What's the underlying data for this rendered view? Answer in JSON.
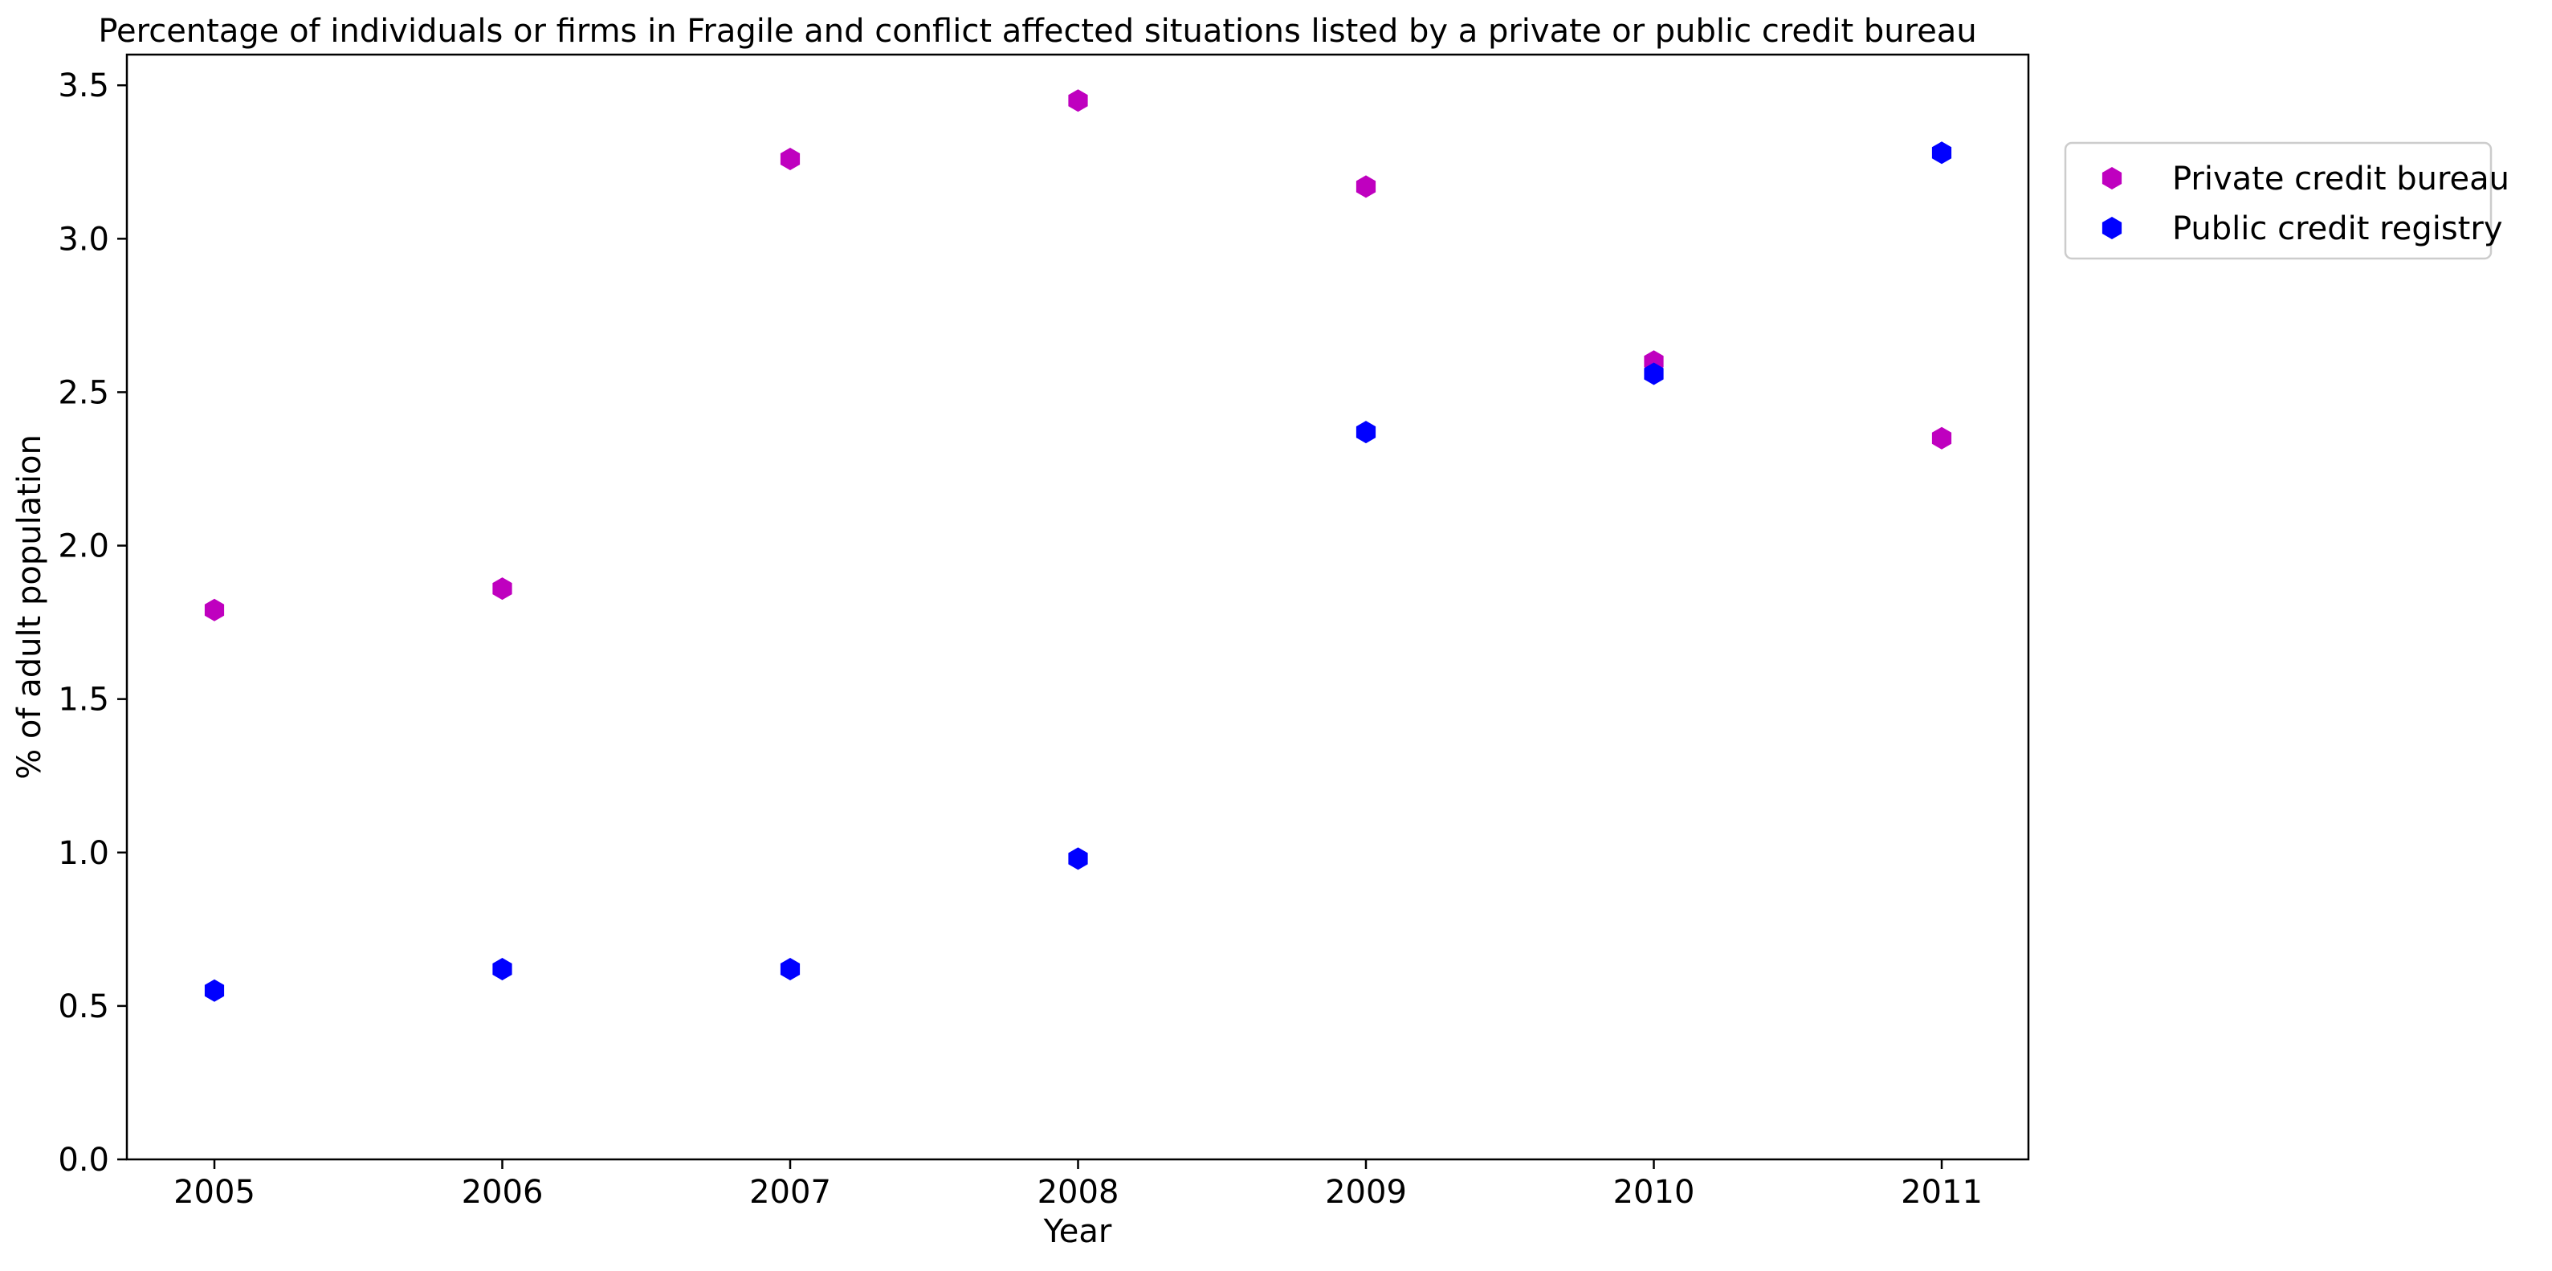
{
  "chart_data": {
    "type": "scatter",
    "title": "Percentage of individuals or firms in Fragile and conflict affected situations listed by a private or public credit bureau",
    "xlabel": "Year",
    "ylabel": "% of adult population",
    "x": [
      "2005",
      "2006",
      "2007",
      "2008",
      "2009",
      "2010",
      "2011"
    ],
    "ylim": [
      0,
      3.6
    ],
    "yticks": [
      "0.0",
      "0.5",
      "1.0",
      "1.5",
      "2.0",
      "2.5",
      "3.0",
      "3.5"
    ],
    "grid": false,
    "legend_position": "outside-top-right",
    "series": [
      {
        "name": "Private credit bureau",
        "color": "#bf00bf",
        "marker": "hexagon",
        "values": [
          1.79,
          1.86,
          3.26,
          3.45,
          3.17,
          2.6,
          2.35
        ]
      },
      {
        "name": "Public credit registry",
        "color": "#0000ff",
        "marker": "hexagon",
        "values": [
          0.55,
          0.62,
          0.62,
          0.98,
          2.37,
          2.56,
          3.28
        ]
      }
    ]
  }
}
